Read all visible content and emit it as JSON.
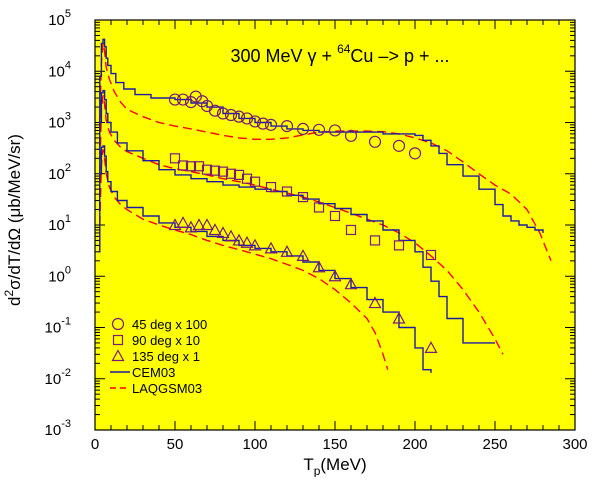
{
  "colors": {
    "background": "#ffff00",
    "cem": "#1a1aa8",
    "laqgsm": "#ff0000",
    "markers": "#7a1a7a",
    "axis": "#000000"
  },
  "chart_data": {
    "type": "line",
    "title": {
      "prefix": "300 MeV ",
      "gamma": "γ",
      "plus": " + ",
      "mass_number": "64",
      "rest": "Cu –> p + ..."
    },
    "xlabel": {
      "main": "T",
      "sub": "p",
      "unit": "(MeV)"
    },
    "ylabel": {
      "sup": "2",
      "text1": "d",
      "text2": "σ/dT/dΩ (μb/MeV/sr)"
    },
    "xlim": [
      0,
      300
    ],
    "ylim_log10": [
      -3,
      5
    ],
    "x_scale": "linear",
    "y_scale": "log",
    "x_ticks": [
      "0",
      "50",
      "100",
      "150",
      "200",
      "250",
      "300"
    ],
    "y_ticks": [
      {
        "base": "10",
        "exp": "5"
      },
      {
        "base": "10",
        "exp": "4"
      },
      {
        "base": "10",
        "exp": "3"
      },
      {
        "base": "10",
        "exp": "2"
      },
      {
        "base": "10",
        "exp": "1"
      },
      {
        "base": "10",
        "exp": "0"
      },
      {
        "base": "10",
        "exp": "-1"
      },
      {
        "base": "10",
        "exp": "-2"
      },
      {
        "base": "10",
        "exp": "-3"
      }
    ],
    "legend": {
      "position": "bottom-left",
      "entries": [
        {
          "marker": "circle",
          "label": "45 deg x 100"
        },
        {
          "marker": "square",
          "label": "90 deg x 10"
        },
        {
          "marker": "triangle",
          "label": "135 deg x 1"
        },
        {
          "marker": "solid-line",
          "label": "CEM03"
        },
        {
          "marker": "dashed-line",
          "label": "LAQGSM03"
        }
      ]
    },
    "series": [
      {
        "angle": "45 deg x 100",
        "marker": "circle",
        "data": [
          [
            50,
            2800
          ],
          [
            55,
            2800
          ],
          [
            60,
            2500
          ],
          [
            63,
            3200
          ],
          [
            67,
            2600
          ],
          [
            70,
            2100
          ],
          [
            75,
            1700
          ],
          [
            80,
            1500
          ],
          [
            85,
            1400
          ],
          [
            90,
            1300
          ],
          [
            95,
            1200
          ],
          [
            100,
            1050
          ],
          [
            105,
            950
          ],
          [
            110,
            900
          ],
          [
            120,
            850
          ],
          [
            130,
            750
          ],
          [
            140,
            720
          ],
          [
            150,
            700
          ],
          [
            160,
            550
          ],
          [
            175,
            420
          ],
          [
            190,
            350
          ],
          [
            200,
            250
          ]
        ],
        "cem": [
          [
            2,
            300
          ],
          [
            3,
            8000
          ],
          [
            4,
            35000
          ],
          [
            5,
            42000
          ],
          [
            6,
            30000
          ],
          [
            7,
            18000
          ],
          [
            8,
            13000
          ],
          [
            10,
            9000
          ],
          [
            13,
            6000
          ],
          [
            18,
            4500
          ],
          [
            25,
            3500
          ],
          [
            35,
            3000
          ],
          [
            50,
            2800
          ],
          [
            60,
            2400
          ],
          [
            70,
            2000
          ],
          [
            80,
            1500
          ],
          [
            90,
            1200
          ],
          [
            100,
            1000
          ],
          [
            110,
            850
          ],
          [
            120,
            750
          ],
          [
            130,
            700
          ],
          [
            140,
            650
          ],
          [
            150,
            650
          ],
          [
            160,
            650
          ],
          [
            170,
            650
          ],
          [
            180,
            600
          ],
          [
            190,
            600
          ],
          [
            200,
            560
          ],
          [
            205,
            450
          ],
          [
            210,
            350
          ],
          [
            215,
            250
          ],
          [
            220,
            150
          ],
          [
            230,
            90
          ],
          [
            240,
            50
          ],
          [
            250,
            25
          ],
          [
            255,
            15
          ],
          [
            260,
            12
          ],
          [
            265,
            10
          ],
          [
            270,
            9
          ],
          [
            275,
            8
          ],
          [
            280,
            7
          ]
        ],
        "laqgsm": [
          [
            3,
            1000
          ],
          [
            4,
            15000
          ],
          [
            5,
            35000
          ],
          [
            6,
            25000
          ],
          [
            7,
            12000
          ],
          [
            9,
            7000
          ],
          [
            12,
            4000
          ],
          [
            16,
            2500
          ],
          [
            20,
            1800
          ],
          [
            30,
            1300
          ],
          [
            40,
            1000
          ],
          [
            50,
            850
          ],
          [
            60,
            750
          ],
          [
            70,
            650
          ],
          [
            80,
            560
          ],
          [
            90,
            500
          ],
          [
            100,
            470
          ],
          [
            110,
            470
          ],
          [
            120,
            500
          ],
          [
            130,
            570
          ],
          [
            140,
            650
          ],
          [
            150,
            680
          ],
          [
            160,
            680
          ],
          [
            170,
            680
          ],
          [
            180,
            660
          ],
          [
            190,
            600
          ],
          [
            200,
            500
          ],
          [
            210,
            400
          ],
          [
            220,
            280
          ],
          [
            230,
            170
          ],
          [
            240,
            100
          ],
          [
            250,
            60
          ],
          [
            260,
            40
          ],
          [
            270,
            20
          ],
          [
            278,
            7
          ],
          [
            285,
            2
          ]
        ]
      },
      {
        "angle": "90 deg x 10",
        "marker": "square",
        "data": [
          [
            50,
            200
          ],
          [
            55,
            145
          ],
          [
            60,
            140
          ],
          [
            65,
            140
          ],
          [
            70,
            120
          ],
          [
            75,
            115
          ],
          [
            80,
            110
          ],
          [
            85,
            100
          ],
          [
            90,
            95
          ],
          [
            95,
            80
          ],
          [
            100,
            70
          ],
          [
            110,
            55
          ],
          [
            120,
            45
          ],
          [
            130,
            35
          ],
          [
            140,
            22
          ],
          [
            150,
            15
          ],
          [
            160,
            8
          ],
          [
            175,
            5
          ],
          [
            190,
            4
          ],
          [
            210,
            2.6
          ]
        ],
        "cem": [
          [
            2,
            20
          ],
          [
            3,
            1000
          ],
          [
            4,
            3800
          ],
          [
            5,
            4200
          ],
          [
            6,
            2800
          ],
          [
            7,
            1500
          ],
          [
            8,
            1000
          ],
          [
            10,
            650
          ],
          [
            14,
            400
          ],
          [
            20,
            280
          ],
          [
            30,
            180
          ],
          [
            40,
            120
          ],
          [
            50,
            95
          ],
          [
            60,
            80
          ],
          [
            70,
            70
          ],
          [
            80,
            60
          ],
          [
            90,
            55
          ],
          [
            100,
            50
          ],
          [
            110,
            45
          ],
          [
            120,
            38
          ],
          [
            130,
            32
          ],
          [
            140,
            26
          ],
          [
            150,
            21
          ],
          [
            160,
            16
          ],
          [
            170,
            12
          ],
          [
            180,
            8
          ],
          [
            190,
            5
          ],
          [
            200,
            3
          ],
          [
            205,
            1.5
          ],
          [
            210,
            0.8
          ],
          [
            215,
            0.4
          ],
          [
            220,
            0.15
          ],
          [
            230,
            0.05
          ],
          [
            240,
            0.05
          ],
          [
            250,
            0.05
          ]
        ],
        "laqgsm": [
          [
            3,
            100
          ],
          [
            4,
            1800
          ],
          [
            5,
            3400
          ],
          [
            6,
            2300
          ],
          [
            7,
            1100
          ],
          [
            9,
            650
          ],
          [
            12,
            450
          ],
          [
            16,
            330
          ],
          [
            20,
            270
          ],
          [
            30,
            200
          ],
          [
            40,
            150
          ],
          [
            50,
            125
          ],
          [
            60,
            110
          ],
          [
            70,
            95
          ],
          [
            80,
            80
          ],
          [
            90,
            70
          ],
          [
            100,
            60
          ],
          [
            110,
            50
          ],
          [
            120,
            42
          ],
          [
            130,
            35
          ],
          [
            140,
            28
          ],
          [
            150,
            22
          ],
          [
            160,
            17
          ],
          [
            170,
            13
          ],
          [
            180,
            10
          ],
          [
            190,
            7
          ],
          [
            200,
            4.5
          ],
          [
            210,
            2.5
          ],
          [
            220,
            1.3
          ],
          [
            230,
            0.55
          ],
          [
            240,
            0.2
          ],
          [
            250,
            0.06
          ],
          [
            255,
            0.03
          ]
        ]
      },
      {
        "angle": "135 deg x 1",
        "marker": "triangle",
        "data": [
          [
            50,
            10
          ],
          [
            55,
            11
          ],
          [
            60,
            9
          ],
          [
            65,
            10
          ],
          [
            70,
            10
          ],
          [
            75,
            8
          ],
          [
            80,
            7
          ],
          [
            85,
            6
          ],
          [
            90,
            5
          ],
          [
            95,
            4.5
          ],
          [
            100,
            4
          ],
          [
            110,
            3.5
          ],
          [
            120,
            3
          ],
          [
            130,
            2.5
          ],
          [
            140,
            1.5
          ],
          [
            150,
            1
          ],
          [
            160,
            0.7
          ],
          [
            175,
            0.3
          ],
          [
            190,
            0.15
          ],
          [
            210,
            0.04
          ]
        ],
        "cem": [
          [
            2,
            3
          ],
          [
            3,
            100
          ],
          [
            4,
            330
          ],
          [
            5,
            350
          ],
          [
            6,
            220
          ],
          [
            7,
            110
          ],
          [
            8,
            70
          ],
          [
            10,
            45
          ],
          [
            14,
            30
          ],
          [
            20,
            22
          ],
          [
            30,
            15
          ],
          [
            40,
            11
          ],
          [
            50,
            9
          ],
          [
            60,
            7.5
          ],
          [
            70,
            6
          ],
          [
            80,
            5
          ],
          [
            90,
            4
          ],
          [
            100,
            3.5
          ],
          [
            110,
            3
          ],
          [
            120,
            2.5
          ],
          [
            130,
            1.9
          ],
          [
            140,
            1.3
          ],
          [
            150,
            0.9
          ],
          [
            160,
            0.6
          ],
          [
            170,
            0.35
          ],
          [
            180,
            0.2
          ],
          [
            190,
            0.1
          ],
          [
            200,
            0.04
          ],
          [
            205,
            0.015
          ],
          [
            210,
            0.013
          ]
        ],
        "laqgsm": [
          [
            3,
            10
          ],
          [
            4,
            150
          ],
          [
            5,
            300
          ],
          [
            6,
            200
          ],
          [
            7,
            100
          ],
          [
            9,
            55
          ],
          [
            12,
            35
          ],
          [
            16,
            25
          ],
          [
            20,
            20
          ],
          [
            30,
            13
          ],
          [
            40,
            10
          ],
          [
            50,
            8
          ],
          [
            60,
            6.5
          ],
          [
            70,
            5
          ],
          [
            80,
            4
          ],
          [
            90,
            3.3
          ],
          [
            100,
            2.7
          ],
          [
            110,
            2.2
          ],
          [
            120,
            1.7
          ],
          [
            130,
            1.3
          ],
          [
            140,
            0.9
          ],
          [
            150,
            0.55
          ],
          [
            160,
            0.3
          ],
          [
            170,
            0.15
          ],
          [
            175,
            0.08
          ],
          [
            180,
            0.03
          ],
          [
            183,
            0.015
          ]
        ]
      }
    ]
  }
}
